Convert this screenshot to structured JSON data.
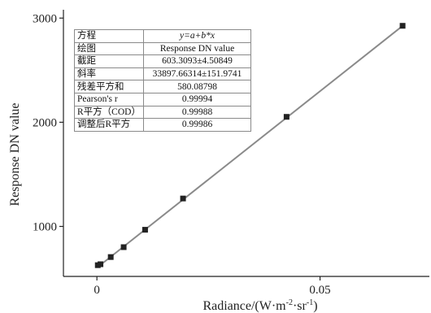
{
  "chart_data": {
    "type": "scatter",
    "xlabel": "Radiance/(W·m",
    "xlabel_sup1": "-2",
    "xlabel_mid": "·sr",
    "xlabel_sup2": "-1",
    "xlabel_end": ")",
    "ylabel": "Response DN value",
    "xlim": [
      -0.0075,
      0.0745
    ],
    "ylim": [
      520,
      3080
    ],
    "xticks": [
      0,
      0.05
    ],
    "xtick_labels": [
      "0",
      "0.05"
    ],
    "yticks": [
      1000,
      2000,
      3000
    ],
    "ytick_labels": [
      "1000",
      "2000",
      "3000"
    ],
    "points": [
      {
        "x": 0.0002,
        "y": 628
      },
      {
        "x": 0.0008,
        "y": 637
      },
      {
        "x": 0.0031,
        "y": 706
      },
      {
        "x": 0.006,
        "y": 801
      },
      {
        "x": 0.0108,
        "y": 968
      },
      {
        "x": 0.0193,
        "y": 1268
      },
      {
        "x": 0.0425,
        "y": 2052
      },
      {
        "x": 0.0685,
        "y": 2926
      }
    ],
    "fit": {
      "intercept": 603.3093,
      "slope": 33897.66314
    },
    "fit_line_color": "#8a8a8a",
    "marker_color": "#222222"
  },
  "fit_table": [
    {
      "key": "方程",
      "value": "y=a+b*x"
    },
    {
      "key": "绘图",
      "value": "Response DN value"
    },
    {
      "key": "截距",
      "value": "603.3093±4.50849"
    },
    {
      "key": "斜率",
      "value": "33897.66314±151.9741"
    },
    {
      "key": "残差平方和",
      "value": "580.08798"
    },
    {
      "key": "Pearson's r",
      "value": "0.99994"
    },
    {
      "key": "R平方（COD）",
      "value": "0.99988"
    },
    {
      "key": "调整后R平方",
      "value": "0.99986"
    }
  ]
}
